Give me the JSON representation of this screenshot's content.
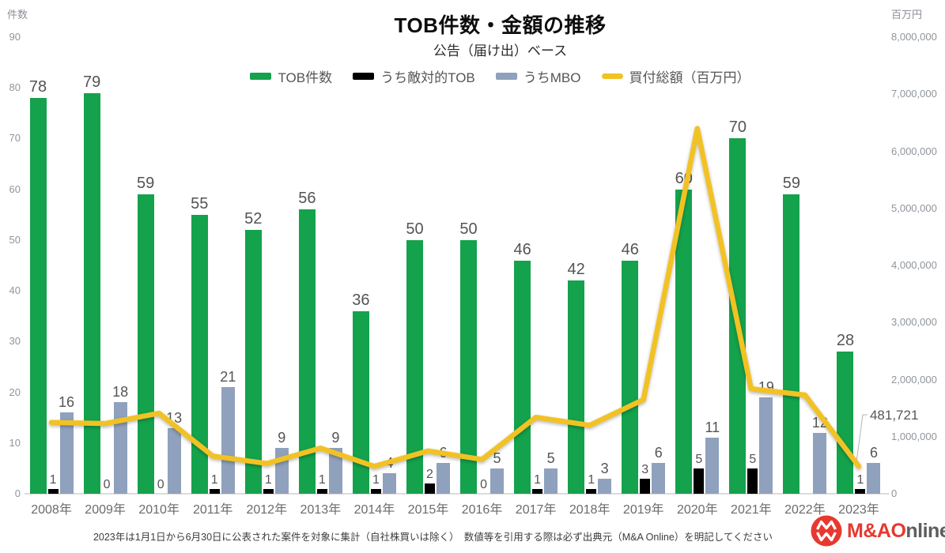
{
  "chart": {
    "title": "TOB件数・金額の推移",
    "subtitle": "公告（届け出）ベース"
  },
  "legend": {
    "items": [
      {
        "label": "TOB件数",
        "color": "#14a24c",
        "type": "bar"
      },
      {
        "label": "うち敵対的TOB",
        "color": "#000000",
        "type": "bar"
      },
      {
        "label": "うちMBO",
        "color": "#8fa1bc",
        "type": "bar"
      },
      {
        "label": "買付総額（百万円）",
        "color": "#f2c224",
        "type": "line"
      }
    ]
  },
  "chart_data": {
    "type": "bar+line",
    "categories": [
      "2008年",
      "2009年",
      "2010年",
      "2011年",
      "2012年",
      "2013年",
      "2014年",
      "2015年",
      "2016年",
      "2017年",
      "2018年",
      "2019年",
      "2020年",
      "2021年",
      "2022年",
      "2023年"
    ],
    "series": [
      {
        "name": "TOB件数",
        "type": "bar",
        "axis": "left",
        "color": "#14a24c",
        "values": [
          78,
          79,
          59,
          55,
          52,
          56,
          36,
          50,
          50,
          46,
          42,
          46,
          60,
          70,
          59,
          28
        ]
      },
      {
        "name": "うち敵対的TOB",
        "type": "bar",
        "axis": "left",
        "color": "#000000",
        "values": [
          1,
          0,
          0,
          1,
          1,
          1,
          1,
          2,
          0,
          1,
          1,
          3,
          5,
          5,
          0,
          1
        ],
        "value_labels": [
          "1",
          "0",
          "0",
          "1",
          "1",
          "1",
          "1",
          "2",
          "0",
          "1",
          "1",
          "3",
          "5",
          "5",
          "",
          "1"
        ]
      },
      {
        "name": "うちMBO",
        "type": "bar",
        "axis": "left",
        "color": "#8fa1bc",
        "values": [
          16,
          18,
          13,
          21,
          9,
          9,
          4,
          6,
          5,
          5,
          3,
          6,
          11,
          19,
          12,
          6
        ]
      },
      {
        "name": "買付総額（百万円）",
        "type": "line",
        "axis": "right",
        "color": "#f2c224",
        "values": [
          1250000,
          1230000,
          1410000,
          660000,
          530000,
          800000,
          480000,
          750000,
          600000,
          1340000,
          1200000,
          1650000,
          6400000,
          1840000,
          1730000,
          481721
        ]
      }
    ],
    "left_axis": {
      "unit": "件数",
      "min": 0,
      "max": 90,
      "tick_step": 10,
      "ticks": [
        "0",
        "10",
        "20",
        "30",
        "40",
        "50",
        "60",
        "70",
        "80",
        "90"
      ]
    },
    "right_axis": {
      "unit": "百万円",
      "min": 0,
      "max": 8000000,
      "ticks": [
        "0",
        "1,000,000",
        "2,000,000",
        "3,000,000",
        "4,000,000",
        "5,000,000",
        "6,000,000",
        "7,000,000",
        "8,000,000"
      ]
    },
    "grid": false,
    "legend_position": "top",
    "annotation": {
      "text": "481,721",
      "series": "買付総額（百万円）",
      "category": "2023年"
    }
  },
  "footer": {
    "note": "2023年は1月1日から6月30日に公表された案件を対象に集計（自社株買いは除く）　数値等を引用する際は必ず出典元（M&A Online）を明記してください"
  },
  "logo": {
    "part_red": "M&A",
    "part_red2": "O",
    "part_gray": "nline"
  }
}
